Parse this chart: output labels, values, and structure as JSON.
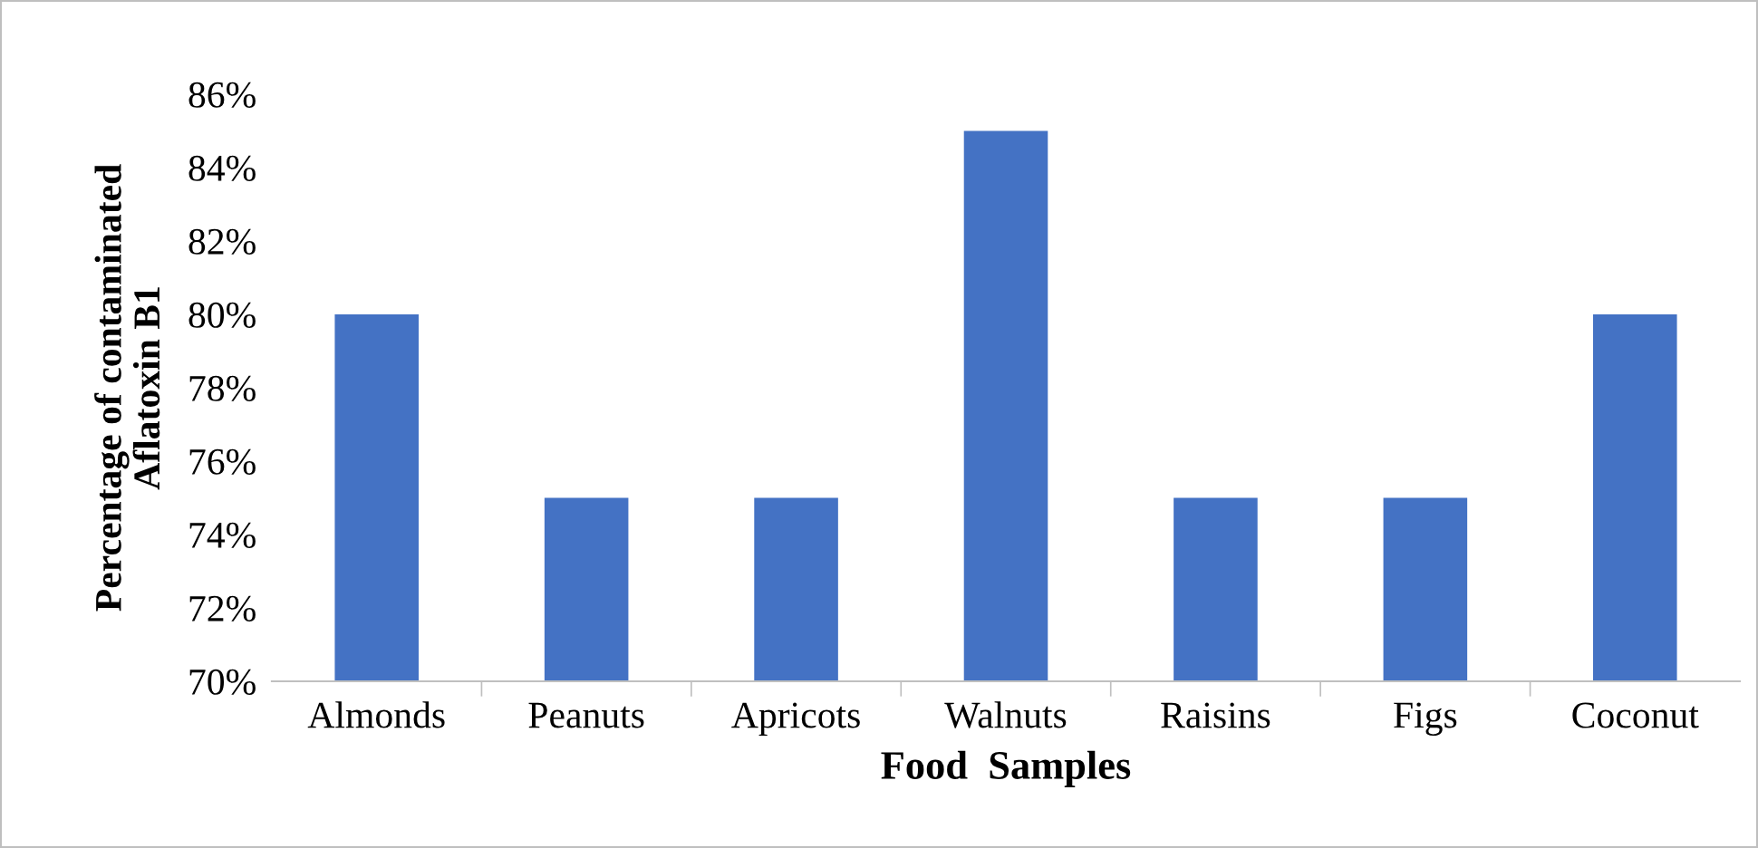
{
  "chart_data": {
    "type": "bar",
    "xlabel": "Food  Samples",
    "ylabel": "Percentage of contaminated\nAflatoxin B1",
    "categories": [
      "Almonds",
      "Peanuts",
      "Apricots",
      "Walnuts",
      "Raisins",
      "Figs",
      "Coconut"
    ],
    "values": [
      80,
      75,
      75,
      85,
      75,
      75,
      80
    ],
    "color": "#4472c4",
    "ylim": [
      70,
      86
    ],
    "yticks": [
      {
        "value": 70,
        "label": "70%"
      },
      {
        "value": 72,
        "label": "72%"
      },
      {
        "value": 74,
        "label": "74%"
      },
      {
        "value": 76,
        "label": "76%"
      },
      {
        "value": 78,
        "label": "78%"
      },
      {
        "value": 80,
        "label": "80%"
      },
      {
        "value": 82,
        "label": "82%"
      },
      {
        "value": 84,
        "label": "84%"
      },
      {
        "value": 86,
        "label": "86%"
      }
    ],
    "grid": false
  }
}
